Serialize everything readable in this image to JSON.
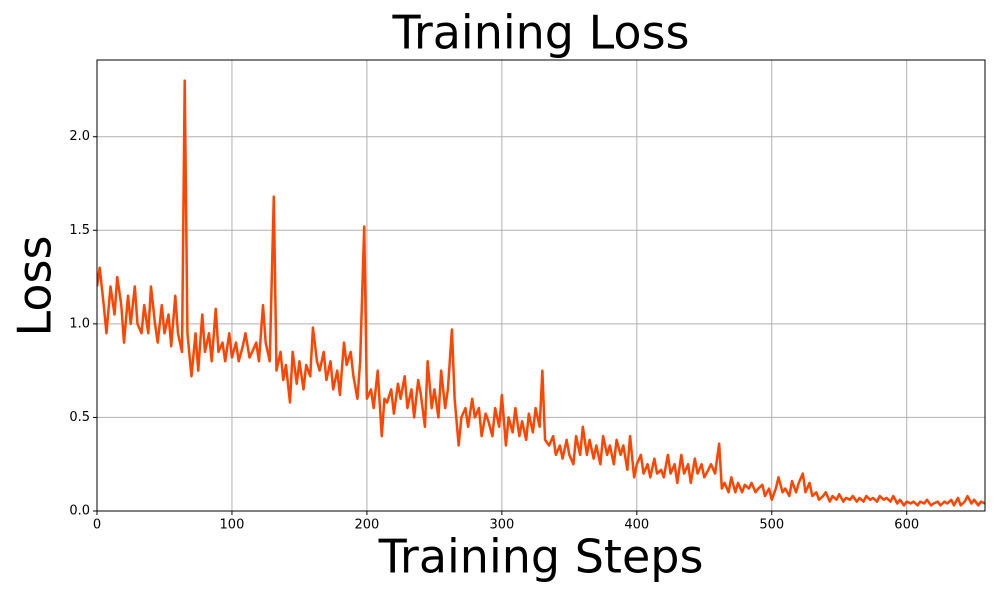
{
  "chart_data": {
    "type": "line",
    "title": "Training Loss",
    "xlabel": "Training Steps",
    "ylabel": "Loss",
    "color": "#ff4500",
    "grid": true,
    "xlim": [
      0,
      658
    ],
    "ylim": [
      0,
      2.41
    ],
    "xticks": [
      0,
      100,
      200,
      300,
      400,
      500,
      600
    ],
    "yticks": [
      {
        "value": 0,
        "label": "0.0"
      },
      0.5,
      {
        "value": 1,
        "label": "1.0"
      },
      1.5,
      {
        "value": 2,
        "label": "2.0"
      }
    ],
    "x": [
      0,
      2,
      5,
      7,
      10,
      13,
      15,
      18,
      20,
      23,
      25,
      28,
      30,
      33,
      35,
      38,
      40,
      43,
      45,
      48,
      50,
      53,
      55,
      58,
      60,
      63,
      65,
      67,
      70,
      73,
      75,
      78,
      80,
      83,
      85,
      88,
      90,
      93,
      95,
      98,
      100,
      103,
      105,
      108,
      110,
      113,
      115,
      118,
      120,
      123,
      125,
      128,
      131,
      133,
      136,
      138,
      140,
      143,
      145,
      148,
      150,
      153,
      155,
      158,
      160,
      163,
      165,
      168,
      170,
      173,
      175,
      178,
      180,
      183,
      185,
      188,
      190,
      193,
      195,
      198,
      200,
      203,
      205,
      208,
      211,
      213,
      215,
      218,
      220,
      223,
      225,
      228,
      230,
      233,
      235,
      238,
      240,
      243,
      245,
      248,
      250,
      253,
      255,
      258,
      260,
      263,
      265,
      268,
      270,
      273,
      275,
      278,
      280,
      283,
      285,
      288,
      290,
      293,
      295,
      298,
      300,
      303,
      305,
      308,
      310,
      313,
      315,
      318,
      320,
      323,
      325,
      328,
      330,
      332,
      335,
      338,
      340,
      343,
      345,
      348,
      350,
      353,
      355,
      358,
      360,
      363,
      365,
      368,
      370,
      373,
      375,
      378,
      380,
      383,
      385,
      388,
      390,
      393,
      395,
      398,
      400,
      403,
      405,
      408,
      410,
      413,
      415,
      418,
      420,
      423,
      425,
      428,
      430,
      433,
      435,
      438,
      440,
      443,
      445,
      448,
      450,
      453,
      455,
      458,
      461,
      463,
      465,
      468,
      470,
      473,
      475,
      478,
      480,
      483,
      485,
      488,
      490,
      493,
      495,
      498,
      500,
      503,
      505,
      508,
      510,
      513,
      515,
      518,
      520,
      523,
      525,
      528,
      530,
      533,
      535,
      538,
      540,
      543,
      545,
      548,
      550,
      553,
      555,
      558,
      560,
      563,
      565,
      568,
      570,
      573,
      575,
      578,
      580,
      583,
      585,
      588,
      590,
      593,
      595,
      598,
      600,
      603,
      605,
      608,
      610,
      613,
      615,
      618,
      620,
      623,
      625,
      628,
      630,
      633,
      635,
      638,
      640,
      643,
      645,
      648,
      650,
      653,
      655,
      658
    ],
    "values": [
      1.2,
      1.3,
      1.1,
      0.95,
      1.2,
      1.05,
      1.25,
      1.1,
      0.9,
      1.15,
      1.0,
      1.2,
      1.0,
      0.95,
      1.1,
      0.95,
      1.2,
      1.0,
      0.9,
      1.1,
      0.95,
      1.05,
      0.88,
      1.15,
      0.95,
      0.85,
      2.3,
      0.95,
      0.72,
      0.95,
      0.75,
      1.05,
      0.85,
      0.95,
      0.8,
      1.08,
      0.85,
      0.9,
      0.8,
      0.95,
      0.82,
      0.9,
      0.8,
      0.88,
      0.95,
      0.82,
      0.85,
      0.9,
      0.8,
      1.1,
      0.9,
      0.8,
      1.68,
      0.75,
      0.85,
      0.7,
      0.78,
      0.58,
      0.85,
      0.68,
      0.8,
      0.65,
      0.78,
      0.72,
      0.98,
      0.8,
      0.75,
      0.85,
      0.7,
      0.8,
      0.65,
      0.75,
      0.62,
      0.9,
      0.78,
      0.85,
      0.72,
      0.6,
      0.8,
      1.52,
      0.6,
      0.65,
      0.55,
      0.75,
      0.4,
      0.6,
      0.58,
      0.65,
      0.52,
      0.68,
      0.6,
      0.72,
      0.55,
      0.65,
      0.5,
      0.7,
      0.62,
      0.45,
      0.8,
      0.55,
      0.65,
      0.5,
      0.75,
      0.55,
      0.65,
      0.97,
      0.6,
      0.35,
      0.5,
      0.55,
      0.45,
      0.6,
      0.5,
      0.55,
      0.4,
      0.52,
      0.48,
      0.4,
      0.55,
      0.45,
      0.62,
      0.35,
      0.5,
      0.42,
      0.55,
      0.4,
      0.48,
      0.38,
      0.52,
      0.42,
      0.55,
      0.45,
      0.75,
      0.38,
      0.35,
      0.4,
      0.3,
      0.35,
      0.28,
      0.38,
      0.3,
      0.25,
      0.4,
      0.3,
      0.45,
      0.3,
      0.38,
      0.28,
      0.35,
      0.25,
      0.4,
      0.3,
      0.35,
      0.25,
      0.38,
      0.3,
      0.35,
      0.22,
      0.4,
      0.18,
      0.25,
      0.3,
      0.2,
      0.25,
      0.18,
      0.28,
      0.2,
      0.22,
      0.18,
      0.3,
      0.2,
      0.25,
      0.15,
      0.3,
      0.2,
      0.25,
      0.15,
      0.28,
      0.2,
      0.25,
      0.18,
      0.22,
      0.25,
      0.2,
      0.36,
      0.12,
      0.15,
      0.1,
      0.18,
      0.1,
      0.15,
      0.1,
      0.14,
      0.12,
      0.15,
      0.1,
      0.12,
      0.14,
      0.08,
      0.12,
      0.06,
      0.12,
      0.18,
      0.1,
      0.12,
      0.08,
      0.16,
      0.1,
      0.15,
      0.2,
      0.1,
      0.15,
      0.08,
      0.1,
      0.06,
      0.08,
      0.1,
      0.05,
      0.08,
      0.06,
      0.09,
      0.05,
      0.07,
      0.06,
      0.08,
      0.05,
      0.07,
      0.05,
      0.08,
      0.06,
      0.07,
      0.05,
      0.08,
      0.06,
      0.07,
      0.05,
      0.08,
      0.04,
      0.06,
      0.03,
      0.05,
      0.04,
      0.05,
      0.03,
      0.05,
      0.04,
      0.06,
      0.03,
      0.04,
      0.05,
      0.03,
      0.05,
      0.04,
      0.06,
      0.03,
      0.07,
      0.03,
      0.05,
      0.08,
      0.04,
      0.06,
      0.03,
      0.05,
      0.04
    ]
  }
}
